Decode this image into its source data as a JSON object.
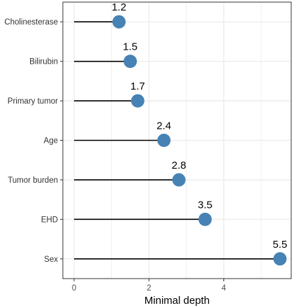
{
  "chart_data": {
    "type": "lollipop",
    "categories": [
      "Cholinesterase",
      "Bilirubin",
      "Primary tumor",
      "Age",
      "Tumor burden",
      "EHD",
      "Sex"
    ],
    "values": [
      1.2,
      1.5,
      1.7,
      2.4,
      2.8,
      3.5,
      5.5
    ],
    "value_labels": [
      "1.2",
      "1.5",
      "1.7",
      "2.4",
      "2.8",
      "3.5",
      "5.5"
    ],
    "xlabel": "Minimal depth",
    "xlim": [
      -0.3,
      5.8
    ],
    "xticks": [
      0,
      2,
      4
    ],
    "xtick_labels": [
      "0",
      "2",
      "4"
    ],
    "grid": true,
    "colors": {
      "point": "#4682B4",
      "stem": "#000000",
      "grid": "#EBEBEB",
      "panel_border": "#333333"
    }
  }
}
